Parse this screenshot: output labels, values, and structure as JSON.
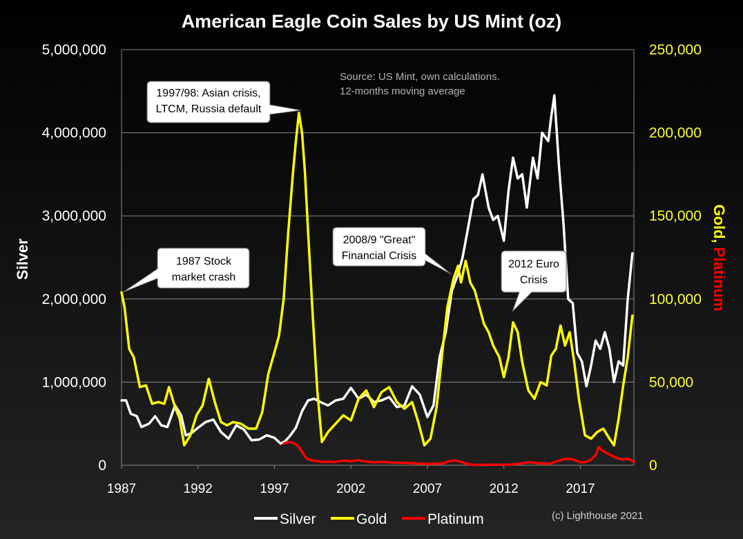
{
  "chart_data": {
    "type": "line",
    "title": "American Eagle Coin Sales by US Mint (oz)",
    "source_note": [
      "Source: US Mint, own calculations.",
      "12-months moving average"
    ],
    "copyright": "(c) Lighthouse 2021",
    "y_left_label": "Silver",
    "y_right_label_part1": "Gold,",
    "y_right_label_part2": "Platinum",
    "y_left_range": [
      0,
      5000000
    ],
    "y_right_range": [
      0,
      250000
    ],
    "x_range": [
      1987,
      2020.5
    ],
    "y_left_ticks": [
      "0",
      "1,000,000",
      "2,000,000",
      "3,000,000",
      "4,000,000",
      "5,000,000"
    ],
    "y_right_ticks": [
      "0",
      "50,000",
      "100,000",
      "150,000",
      "200,000",
      "250,000"
    ],
    "x_ticks": [
      "1987",
      "1992",
      "1997",
      "2002",
      "2007",
      "2012",
      "2017"
    ],
    "x_tick_values": [
      1987,
      1992,
      1997,
      2002,
      2007,
      2012,
      2017
    ],
    "colors": {
      "silver": "#ffffff",
      "gold": "#ffff00",
      "platinum": "#ff0000",
      "grid": "#8a8a8a"
    },
    "series": [
      {
        "name": "Silver",
        "axis": "left",
        "x": [
          1987,
          1987.3,
          1987.6,
          1988,
          1988.3,
          1988.8,
          1989.2,
          1989.6,
          1990,
          1990.5,
          1990.9,
          1991.2,
          1991.6,
          1992,
          1992.5,
          1993,
          1993.5,
          1994,
          1994.5,
          1995,
          1995.5,
          1996,
          1996.5,
          1997,
          1997.4,
          1997.7,
          1998,
          1998.4,
          1998.8,
          1999.2,
          1999.6,
          2000,
          2000.5,
          2001,
          2001.5,
          2002,
          2002.5,
          2003,
          2003.5,
          2004,
          2004.5,
          2005,
          2005.5,
          2006,
          2006.5,
          2007,
          2007.4,
          2007.8,
          2008.2,
          2008.6,
          2009,
          2009.3,
          2009.6,
          2010,
          2010.3,
          2010.6,
          2011,
          2011.3,
          2011.6,
          2012,
          2012.3,
          2012.6,
          2012.9,
          2013.2,
          2013.5,
          2013.9,
          2014.2,
          2014.5,
          2014.9,
          2015.1,
          2015.3,
          2015.6,
          2015.9,
          2016.2,
          2016.5,
          2016.8,
          2017.1,
          2017.4,
          2017.7,
          2018,
          2018.3,
          2018.6,
          2018.9,
          2019.2,
          2019.5,
          2019.8,
          2020.1,
          2020.4
        ],
        "values": [
          780000,
          780000,
          620000,
          590000,
          460000,
          500000,
          590000,
          480000,
          460000,
          720000,
          600000,
          360000,
          390000,
          450000,
          520000,
          550000,
          400000,
          320000,
          480000,
          430000,
          300000,
          310000,
          360000,
          330000,
          260000,
          290000,
          350000,
          450000,
          650000,
          780000,
          800000,
          760000,
          720000,
          780000,
          800000,
          930000,
          800000,
          850000,
          760000,
          780000,
          820000,
          700000,
          720000,
          950000,
          850000,
          580000,
          720000,
          1300000,
          1600000,
          2100000,
          2300000,
          2500000,
          2800000,
          3200000,
          3250000,
          3500000,
          3100000,
          2950000,
          3000000,
          2700000,
          3300000,
          3700000,
          3450000,
          3500000,
          3100000,
          3700000,
          3450000,
          4000000,
          3900000,
          4200000,
          4450000,
          3600000,
          2900000,
          2000000,
          1950000,
          1350000,
          1250000,
          950000,
          1200000,
          1500000,
          1400000,
          1600000,
          1400000,
          1000000,
          1250000,
          1200000,
          2000000,
          2550000
        ]
      },
      {
        "name": "Gold",
        "axis": "right",
        "x": [
          1987,
          1987.2,
          1987.5,
          1987.8,
          1988.2,
          1988.6,
          1989,
          1989.4,
          1989.8,
          1990.1,
          1990.5,
          1990.8,
          1991.1,
          1991.5,
          1991.9,
          1992.3,
          1992.7,
          1993.1,
          1993.5,
          1993.9,
          1994.3,
          1994.8,
          1995.3,
          1995.8,
          1996.2,
          1996.6,
          1997,
          1997.3,
          1997.6,
          1997.9,
          1998.2,
          1998.4,
          1998.6,
          1998.8,
          1999,
          1999.2,
          1999.5,
          1999.8,
          2000.1,
          2000.5,
          2001,
          2001.5,
          2002,
          2002.5,
          2003,
          2003.5,
          2004,
          2004.5,
          2005,
          2005.5,
          2006,
          2006.4,
          2006.8,
          2007.2,
          2007.6,
          2008,
          2008.3,
          2008.7,
          2009,
          2009.2,
          2009.5,
          2009.8,
          2010.1,
          2010.4,
          2010.7,
          2011,
          2011.3,
          2011.7,
          2012,
          2012.3,
          2012.6,
          2012.9,
          2013.2,
          2013.6,
          2014,
          2014.4,
          2014.8,
          2015.1,
          2015.4,
          2015.7,
          2016,
          2016.3,
          2016.6,
          2016.9,
          2017.3,
          2017.7,
          2018.1,
          2018.5,
          2018.9,
          2019.2,
          2019.5,
          2019.8,
          2020.1,
          2020.4
        ],
        "values": [
          104000,
          95000,
          70000,
          65000,
          47000,
          48000,
          37000,
          38000,
          37000,
          47000,
          35000,
          28000,
          12000,
          18000,
          30000,
          36000,
          52000,
          38000,
          26000,
          24000,
          26000,
          25000,
          22000,
          22000,
          32000,
          55000,
          68000,
          78000,
          100000,
          140000,
          175000,
          195000,
          212000,
          200000,
          175000,
          140000,
          90000,
          45000,
          14000,
          20000,
          25000,
          30000,
          27000,
          40000,
          45000,
          35000,
          44000,
          47000,
          38000,
          34000,
          38000,
          26000,
          12000,
          16000,
          35000,
          70000,
          95000,
          112000,
          120000,
          110000,
          123000,
          110000,
          105000,
          95000,
          85000,
          80000,
          72000,
          65000,
          53000,
          65000,
          86000,
          80000,
          62000,
          45000,
          40000,
          50000,
          48000,
          66000,
          70000,
          84000,
          72000,
          80000,
          62000,
          40000,
          18000,
          16000,
          20000,
          22000,
          16000,
          12000,
          28000,
          48000,
          65000,
          90000
        ]
      },
      {
        "name": "Platinum",
        "axis": "right",
        "x": [
          1997.6,
          1997.9,
          1998.2,
          1998.5,
          1998.8,
          1999.1,
          1999.4,
          1999.8,
          2000.2,
          2000.6,
          2001,
          2001.5,
          2002,
          2002.5,
          2003,
          2003.5,
          2004,
          2004.5,
          2005,
          2005.5,
          2006,
          2006.5,
          2007,
          2007.5,
          2008,
          2008.4,
          2008.8,
          2009.2,
          2009.6,
          2010,
          2011,
          2012,
          2012.6,
          2013,
          2013.4,
          2013.8,
          2014.2,
          2015,
          2015.5,
          2016,
          2016.5,
          2017,
          2017.4,
          2017.7,
          2018,
          2018.2,
          2018.4,
          2018.6,
          2018.9,
          2019.2,
          2019.5,
          2019.8,
          2020.1,
          2020.3,
          2020.5
        ],
        "values": [
          13000,
          14000,
          13500,
          12000,
          8000,
          4000,
          3000,
          2500,
          2000,
          2200,
          2000,
          2800,
          2500,
          3000,
          2200,
          1800,
          2000,
          1800,
          1500,
          1500,
          1200,
          1000,
          800,
          1000,
          1000,
          2500,
          2800,
          2000,
          800,
          200,
          300,
          300,
          500,
          1000,
          1500,
          1800,
          1200,
          1000,
          2500,
          3800,
          3600,
          1800,
          2000,
          3500,
          6000,
          11000,
          9000,
          8000,
          6500,
          5000,
          4000,
          3500,
          4000,
          3000,
          2000
        ]
      }
    ],
    "annotations": [
      {
        "lines": [
          "1997/98: Asian crisis,",
          "LTCM, Russia default"
        ]
      },
      {
        "lines": [
          "1987 Stock",
          "market crash"
        ]
      },
      {
        "lines": [
          "2008/9 \"Great\"",
          "Financial Crisis"
        ]
      },
      {
        "lines": [
          "2012 Euro",
          "Crisis"
        ]
      }
    ],
    "legend": [
      "Silver",
      "Gold",
      "Platinum"
    ]
  }
}
